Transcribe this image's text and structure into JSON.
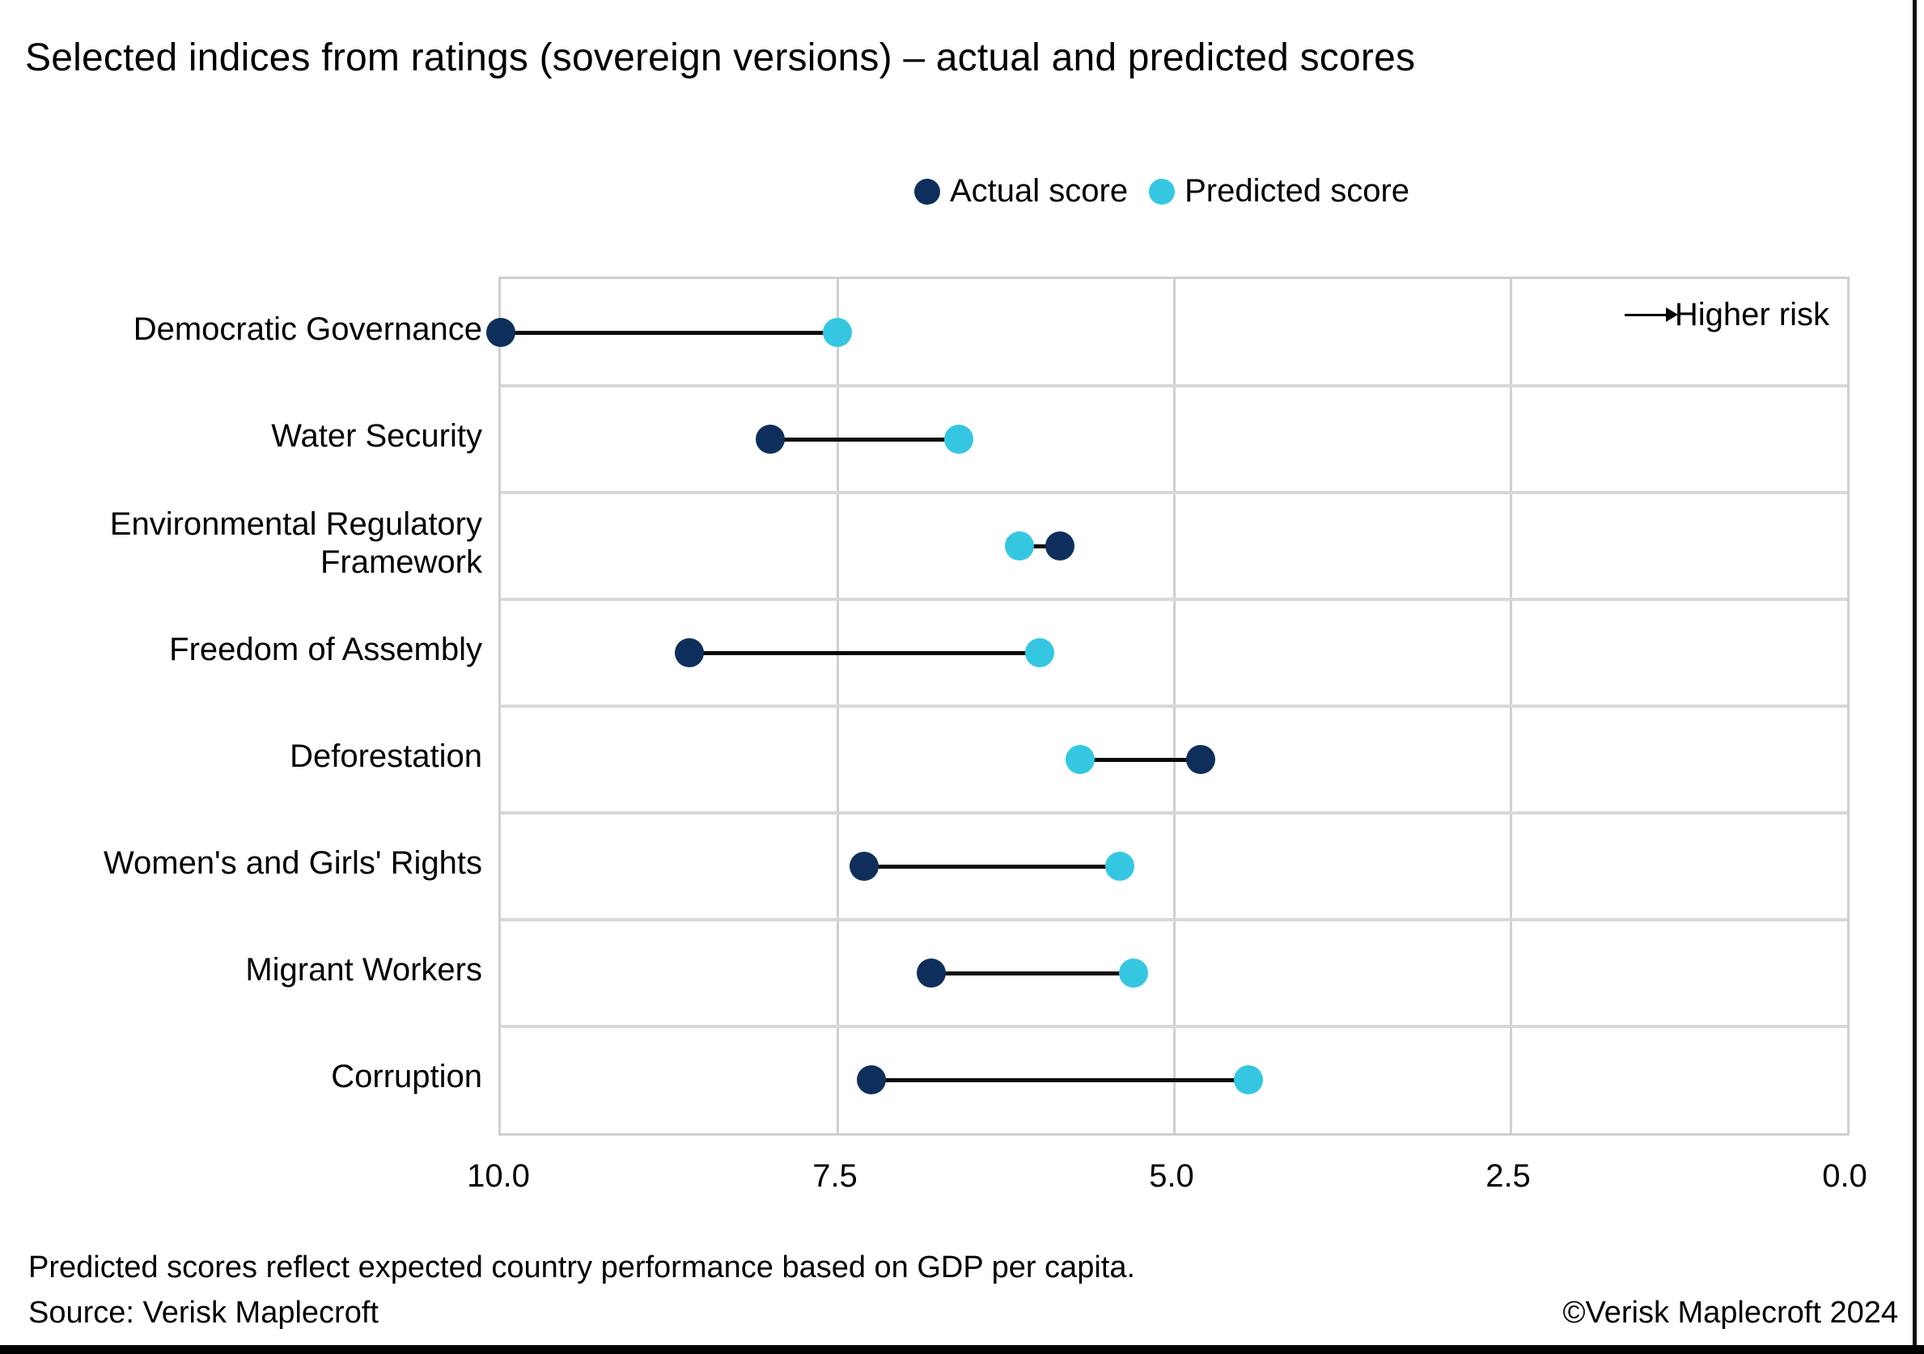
{
  "title": "Selected indices from ratings (sovereign versions) – actual and predicted scores",
  "legend": [
    {
      "key": "actual",
      "label": "Actual score",
      "color": "#0E2F5B"
    },
    {
      "key": "predicted",
      "label": "Predicted score",
      "color": "#35C7E1"
    }
  ],
  "annotation": {
    "text": "Higher risk",
    "icon": "right-arrow-icon"
  },
  "footer": {
    "note": "Predicted scores reflect expected country performance based on GDP per capita.",
    "source": "Source: Verisk Maplecroft",
    "copyright": "©Verisk Maplecroft 2024"
  },
  "chart_data": {
    "type": "scatter",
    "variant": "dumbbell",
    "orientation": "horizontal",
    "categories": [
      "Democratic Governance",
      "Water Security",
      "Environmental Regulatory Framework",
      "Freedom of Assembly",
      "Deforestation",
      "Women's and Girls' Rights",
      "Migrant Workers",
      "Corruption"
    ],
    "series": [
      {
        "name": "Actual score",
        "color": "#0E2F5B",
        "values": [
          10.0,
          8.0,
          5.85,
          8.6,
          4.8,
          7.3,
          6.8,
          7.25
        ]
      },
      {
        "name": "Predicted score",
        "color": "#35C7E1",
        "values": [
          7.5,
          6.6,
          6.15,
          6.0,
          5.7,
          5.4,
          5.3,
          4.45
        ]
      }
    ],
    "xlabel": "",
    "ylabel": "",
    "x_ticks": [
      "10.0",
      "7.5",
      "5.0",
      "2.5",
      "0.0"
    ],
    "x_tick_values": [
      10,
      7.5,
      5,
      2.5,
      0
    ],
    "xlim": [
      10,
      0
    ],
    "axis_reversed": true,
    "grid": true,
    "legend_position": "top",
    "higher_risk_direction": "right",
    "colors": {
      "connector": "#0b0b0b",
      "gridline": "#cfcfcf",
      "background": "#ffffff"
    }
  }
}
